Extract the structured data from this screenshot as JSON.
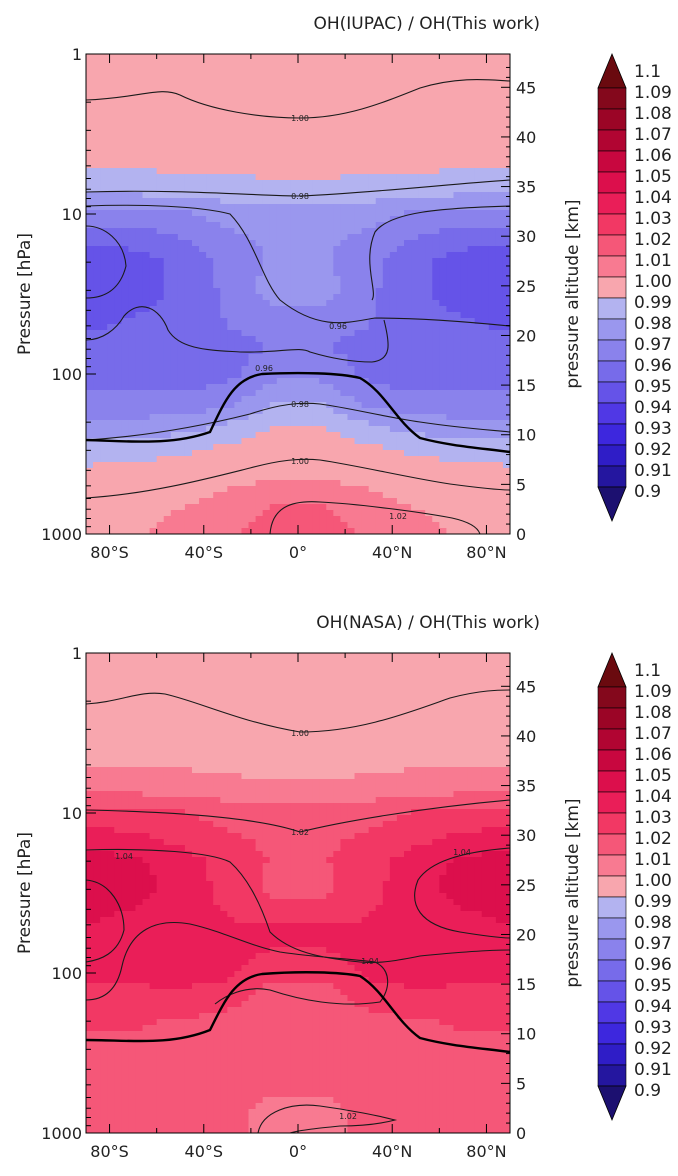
{
  "chart_data": [
    {
      "type": "heatmap",
      "title": "OH(IUPAC) / OH(This work)",
      "xlabel": "",
      "ylabel": "Pressure [hPa]",
      "y2label": "pressure altitude [km]",
      "x_ticks": [
        "80°S",
        "40°S",
        "0°",
        "40°N",
        "80°N"
      ],
      "x_tick_values": [
        -80,
        -40,
        0,
        40,
        80
      ],
      "xlim": [
        -90,
        90
      ],
      "y_scale": "log",
      "ylim": [
        1000,
        1
      ],
      "y_ticks": [
        "1",
        "10",
        "100",
        "1000"
      ],
      "y_tick_values": [
        1,
        10,
        100,
        1000
      ],
      "y2_ticks": [
        "0",
        "5",
        "10",
        "15",
        "20",
        "25",
        "30",
        "35",
        "40",
        "45"
      ],
      "y2_tick_values": [
        0,
        5,
        10,
        15,
        20,
        25,
        30,
        35,
        40,
        45
      ],
      "contour_labels": [
        "1.00",
        "0.98",
        "0.96",
        "0.96",
        "0.98",
        "1.00",
        "1.02"
      ],
      "colorbar": {
        "levels": [
          "1.1",
          "1.09",
          "1.08",
          "1.07",
          "1.06",
          "1.05",
          "1.04",
          "1.03",
          "1.02",
          "1.01",
          "1.00",
          "0.99",
          "0.98",
          "0.97",
          "0.96",
          "0.95",
          "0.94",
          "0.93",
          "0.92",
          "0.91",
          "0.9"
        ],
        "level_values": [
          1.1,
          1.09,
          1.08,
          1.07,
          1.06,
          1.05,
          1.04,
          1.03,
          1.02,
          1.01,
          1.0,
          0.99,
          0.98,
          0.97,
          0.96,
          0.95,
          0.94,
          0.93,
          0.92,
          0.91,
          0.9
        ],
        "colors": [
          "#6a0a0f",
          "#84081c",
          "#9b0526",
          "#b10532",
          "#c8073f",
          "#dc0f4c",
          "#ea1e58",
          "#f23864",
          "#f55778",
          "#f87a91",
          "#f8a6ae",
          "#b3b3f0",
          "#9a97ee",
          "#8a82ec",
          "#776bea",
          "#6553e8",
          "#5038e5",
          "#3d27de",
          "#2f1dc7",
          "#24169f",
          "#1c1070"
        ]
      },
      "field": {
        "lat": [
          -90,
          -70,
          -50,
          -30,
          -10,
          10,
          30,
          50,
          70,
          90
        ],
        "pressure": [
          1,
          2,
          3,
          5,
          7,
          10,
          15,
          20,
          30,
          50,
          70,
          100,
          150,
          200,
          300,
          400,
          500,
          700,
          1000
        ],
        "values": [
          [
            1.006,
            1.006,
            1.006,
            1.006,
            1.006,
            1.006,
            1.006,
            1.006,
            1.006,
            1.006
          ],
          [
            1.005,
            1.005,
            1.005,
            1.005,
            1.005,
            1.005,
            1.005,
            1.005,
            1.005,
            1.005
          ],
          [
            0.995,
            0.995,
            0.998,
            1.004,
            1.004,
            1.004,
            1.004,
            0.998,
            0.995,
            0.995
          ],
          [
            0.991,
            0.991,
            0.992,
            0.993,
            0.994,
            0.994,
            0.993,
            0.992,
            0.991,
            0.991
          ],
          [
            0.984,
            0.984,
            0.985,
            0.986,
            0.986,
            0.986,
            0.986,
            0.985,
            0.984,
            0.984
          ],
          [
            0.966,
            0.966,
            0.968,
            0.974,
            0.976,
            0.976,
            0.974,
            0.968,
            0.966,
            0.966
          ],
          [
            0.952,
            0.953,
            0.958,
            0.966,
            0.972,
            0.972,
            0.966,
            0.958,
            0.953,
            0.952
          ],
          [
            0.942,
            0.945,
            0.953,
            0.963,
            0.972,
            0.972,
            0.963,
            0.953,
            0.945,
            0.942
          ],
          [
            0.94,
            0.943,
            0.953,
            0.962,
            0.975,
            0.975,
            0.962,
            0.953,
            0.943,
            0.94
          ],
          [
            0.948,
            0.952,
            0.957,
            0.96,
            0.962,
            0.962,
            0.96,
            0.957,
            0.952,
            0.948
          ],
          [
            0.955,
            0.957,
            0.955,
            0.957,
            0.961,
            0.961,
            0.957,
            0.955,
            0.957,
            0.955
          ],
          [
            0.958,
            0.958,
            0.956,
            0.957,
            0.967,
            0.967,
            0.957,
            0.956,
            0.958,
            0.958
          ],
          [
            0.962,
            0.962,
            0.962,
            0.966,
            0.98,
            0.98,
            0.966,
            0.962,
            0.962,
            0.962
          ],
          [
            0.972,
            0.972,
            0.974,
            0.979,
            0.988,
            0.988,
            0.979,
            0.974,
            0.972,
            0.972
          ],
          [
            0.984,
            0.985,
            0.988,
            0.993,
            0.999,
            0.999,
            0.993,
            0.988,
            0.985,
            0.984
          ],
          [
            0.992,
            0.993,
            0.996,
            1.001,
            1.006,
            1.006,
            1.001,
            0.996,
            0.993,
            0.992
          ],
          [
            1.0,
            1.001,
            1.004,
            1.009,
            1.013,
            1.013,
            1.009,
            1.004,
            1.001,
            1.0
          ],
          [
            1.005,
            1.007,
            1.01,
            1.015,
            1.021,
            1.021,
            1.015,
            1.01,
            1.007,
            1.005
          ],
          [
            1.006,
            1.009,
            1.013,
            1.019,
            1.025,
            1.025,
            1.019,
            1.013,
            1.009,
            1.006
          ]
        ]
      }
    },
    {
      "type": "heatmap",
      "title": "OH(NASA) / OH(This work)",
      "xlabel": "",
      "ylabel": "Pressure [hPa]",
      "y2label": "pressure altitude [km]",
      "x_ticks": [
        "80°S",
        "40°S",
        "0°",
        "40°N",
        "80°N"
      ],
      "x_tick_values": [
        -80,
        -40,
        0,
        40,
        80
      ],
      "xlim": [
        -90,
        90
      ],
      "y_scale": "log",
      "ylim": [
        1000,
        1
      ],
      "y_ticks": [
        "1",
        "10",
        "100",
        "1000"
      ],
      "y_tick_values": [
        1,
        10,
        100,
        1000
      ],
      "y2_ticks": [
        "0",
        "5",
        "10",
        "15",
        "20",
        "25",
        "30",
        "35",
        "40",
        "45"
      ],
      "y2_tick_values": [
        0,
        5,
        10,
        15,
        20,
        25,
        30,
        35,
        40,
        45
      ],
      "contour_labels": [
        "1.00",
        "1.02",
        "1.04",
        "1.04",
        "1.04",
        "1.02"
      ],
      "colorbar": {
        "levels": [
          "1.1",
          "1.09",
          "1.08",
          "1.07",
          "1.06",
          "1.05",
          "1.04",
          "1.03",
          "1.02",
          "1.01",
          "1.00",
          "0.99",
          "0.98",
          "0.97",
          "0.96",
          "0.95",
          "0.94",
          "0.93",
          "0.92",
          "0.91",
          "0.9"
        ],
        "level_values": [
          1.1,
          1.09,
          1.08,
          1.07,
          1.06,
          1.05,
          1.04,
          1.03,
          1.02,
          1.01,
          1.0,
          0.99,
          0.98,
          0.97,
          0.96,
          0.95,
          0.94,
          0.93,
          0.92,
          0.91,
          0.9
        ],
        "colors": [
          "#6a0a0f",
          "#84081c",
          "#9b0526",
          "#b10532",
          "#c8073f",
          "#dc0f4c",
          "#ea1e58",
          "#f23864",
          "#f55778",
          "#f87a91",
          "#f8a6ae",
          "#b3b3f0",
          "#9a97ee",
          "#8a82ec",
          "#776bea",
          "#6553e8",
          "#5038e5",
          "#3d27de",
          "#2f1dc7",
          "#24169f",
          "#1c1070"
        ]
      },
      "field": {
        "lat": [
          -90,
          -70,
          -50,
          -30,
          -10,
          10,
          30,
          50,
          70,
          90
        ],
        "pressure": [
          1,
          2,
          3,
          5,
          7,
          10,
          15,
          20,
          30,
          50,
          70,
          100,
          150,
          200,
          300,
          400,
          500,
          700,
          1000
        ],
        "values": [
          [
            0.995,
            0.995,
            0.995,
            0.995,
            0.995,
            0.995,
            0.995,
            0.995,
            0.995,
            0.995
          ],
          [
            0.996,
            0.996,
            0.996,
            0.996,
            0.996,
            0.996,
            0.996,
            0.996,
            0.996,
            0.996
          ],
          [
            1.004,
            1.004,
            1.004,
            0.996,
            0.996,
            0.996,
            0.996,
            1.004,
            1.004,
            1.004
          ],
          [
            1.009,
            1.009,
            1.009,
            1.007,
            1.006,
            1.006,
            1.007,
            1.009,
            1.009,
            1.009
          ],
          [
            1.016,
            1.016,
            1.015,
            1.014,
            1.013,
            1.013,
            1.014,
            1.015,
            1.016,
            1.016
          ],
          [
            1.034,
            1.034,
            1.031,
            1.026,
            1.024,
            1.024,
            1.026,
            1.031,
            1.034,
            1.034
          ],
          [
            1.045,
            1.043,
            1.038,
            1.032,
            1.028,
            1.028,
            1.032,
            1.038,
            1.043,
            1.045
          ],
          [
            1.056,
            1.052,
            1.045,
            1.036,
            1.029,
            1.029,
            1.036,
            1.045,
            1.052,
            1.056
          ],
          [
            1.058,
            1.055,
            1.046,
            1.037,
            1.027,
            1.027,
            1.037,
            1.046,
            1.055,
            1.058
          ],
          [
            1.05,
            1.046,
            1.042,
            1.041,
            1.04,
            1.04,
            1.041,
            1.042,
            1.046,
            1.05
          ],
          [
            1.045,
            1.043,
            1.044,
            1.043,
            1.04,
            1.04,
            1.043,
            1.044,
            1.043,
            1.045
          ],
          [
            1.041,
            1.041,
            1.043,
            1.042,
            1.033,
            1.033,
            1.042,
            1.043,
            1.041,
            1.041
          ],
          [
            1.038,
            1.038,
            1.038,
            1.034,
            1.022,
            1.022,
            1.034,
            1.038,
            1.038,
            1.038
          ],
          [
            1.031,
            1.031,
            1.029,
            1.025,
            1.02,
            1.02,
            1.025,
            1.029,
            1.031,
            1.031
          ],
          [
            1.028,
            1.028,
            1.026,
            1.024,
            1.022,
            1.022,
            1.024,
            1.026,
            1.028,
            1.028
          ],
          [
            1.027,
            1.027,
            1.026,
            1.025,
            1.023,
            1.023,
            1.025,
            1.026,
            1.027,
            1.027
          ],
          [
            1.026,
            1.026,
            1.025,
            1.024,
            1.022,
            1.022,
            1.024,
            1.025,
            1.026,
            1.026
          ],
          [
            1.026,
            1.026,
            1.025,
            1.023,
            1.017,
            1.017,
            1.023,
            1.025,
            1.026,
            1.026
          ],
          [
            1.025,
            1.025,
            1.024,
            1.022,
            1.018,
            1.018,
            1.022,
            1.024,
            1.025,
            1.025
          ]
        ]
      }
    }
  ]
}
